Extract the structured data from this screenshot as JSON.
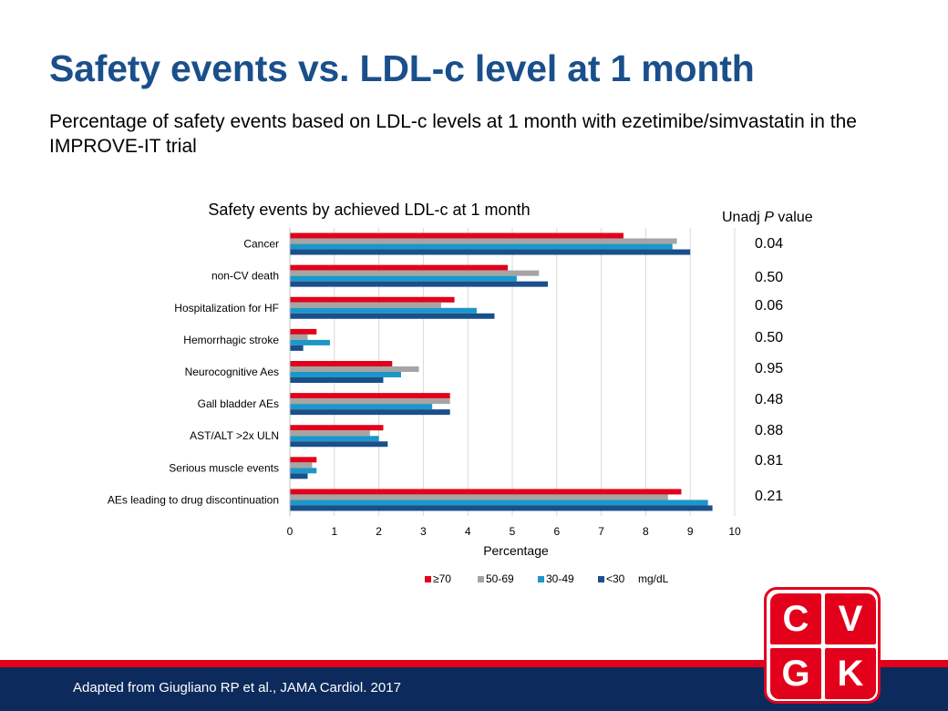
{
  "slide": {
    "title": "Safety events vs. LDL-c level at 1 month",
    "subtitle": "Percentage of safety events based on LDL-c levels at 1 month with ezetimibe/simvastatin in the IMPROVE-IT trial",
    "footer": "Adapted from Giugliano RP et al., JAMA Cardiol. 2017",
    "logo_letters": [
      "C",
      "V",
      "G",
      "K"
    ]
  },
  "chart_data": {
    "type": "bar",
    "orientation": "horizontal",
    "title": "Safety events by achieved LDL-c at 1 month",
    "xlabel": "Percentage",
    "xlim": [
      0,
      10
    ],
    "xticks": [
      0,
      1,
      2,
      3,
      4,
      5,
      6,
      7,
      8,
      9,
      10
    ],
    "grid": true,
    "legend_position": "bottom",
    "legend_unit": "mg/dL",
    "categories": [
      "Cancer",
      "non-CV death",
      "Hospitalization for HF",
      "Hemorrhagic stroke",
      "Neurocognitive Aes",
      "Gall bladder AEs",
      "AST/ALT >2x ULN",
      "Serious muscle events",
      "AEs leading to drug discontinuation"
    ],
    "series": [
      {
        "name": "≥70",
        "color": "#e3001b",
        "values": [
          7.5,
          4.9,
          3.7,
          0.6,
          2.3,
          3.6,
          2.1,
          0.6,
          8.8
        ]
      },
      {
        "name": "50-69",
        "color": "#a5a5a5",
        "values": [
          8.7,
          5.6,
          3.4,
          0.4,
          2.9,
          3.6,
          1.8,
          0.5,
          8.5
        ]
      },
      {
        "name": "30-49",
        "color": "#1e96c8",
        "values": [
          8.6,
          5.1,
          4.2,
          0.9,
          2.5,
          3.2,
          2.0,
          0.6,
          9.4
        ]
      },
      {
        "name": "<30",
        "color": "#1a4f8b",
        "values": [
          9.0,
          5.8,
          4.6,
          0.3,
          2.1,
          3.6,
          2.2,
          0.4,
          9.5
        ]
      }
    ],
    "pvalue_header": "Unadj P value",
    "pvalue_header_parts": [
      "Unadj ",
      "P",
      " value"
    ],
    "pvalues": [
      "0.04",
      "0.50",
      "0.06",
      "0.50",
      "0.95",
      "0.48",
      "0.88",
      "0.81",
      "0.21"
    ]
  }
}
